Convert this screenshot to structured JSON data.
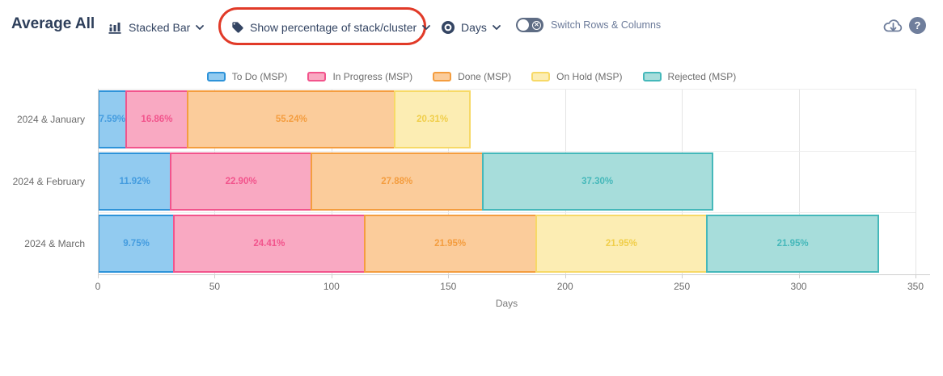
{
  "header": {
    "title": "Average All",
    "chart_type_dropdown": {
      "label": "Stacked Bar",
      "icon": "bar-chart-icon"
    },
    "percentage_dropdown": {
      "label": "Show percentage of stack/cluster",
      "icon": "tag-icon",
      "highlighted": true
    },
    "unit_dropdown": {
      "label": "Days",
      "icon": "eye-icon"
    },
    "switch_toggle": {
      "label": "Switch Rows & Columns",
      "state": "off"
    },
    "download_tooltip": "cloud-download-icon",
    "help_tooltip": "help-icon"
  },
  "annotation": {
    "color": "#e13a28",
    "shape": "rounded-rect"
  },
  "chart_data": {
    "type": "bar",
    "orientation": "horizontal",
    "stacked": true,
    "value_mode": "percentage of stack shown as labels, x axis in days",
    "xlabel": "Days",
    "xlim": [
      0,
      350
    ],
    "xticks": [
      0,
      50,
      100,
      150,
      200,
      250,
      300,
      350
    ],
    "grid": true,
    "legend_position": "top",
    "categories": [
      "2024 & January",
      "2024 & February",
      "2024 & March"
    ],
    "totals_days": [
      161.6,
      265.5,
      337.2
    ],
    "series": [
      {
        "name": "To Do (MSP)",
        "fill": "#92cbf0",
        "border": "#2e93d9",
        "label_color": "#449cdf",
        "values_days": [
          12.3,
          31.6,
          32.9
        ],
        "labels": [
          "7.59%",
          "11.92%",
          "9.75%"
        ]
      },
      {
        "name": "In Progress (MSP)",
        "fill": "#f9a9c2",
        "border": "#f2548c",
        "label_color": "#f2548c",
        "values_days": [
          27.3,
          60.8,
          82.3
        ],
        "labels": [
          "16.86%",
          "22.90%",
          "24.41%"
        ]
      },
      {
        "name": "Done (MSP)",
        "fill": "#fbcc9b",
        "border": "#f49d3f",
        "label_color": "#f49d3f",
        "values_days": [
          89.3,
          74.0,
          74.0
        ],
        "labels": [
          "55.24%",
          "27.88%",
          "21.95%"
        ]
      },
      {
        "name": "On Hold (MSP)",
        "fill": "#fcedb3",
        "border": "#f7d967",
        "label_color": "#f0ce4a",
        "values_days": [
          32.8,
          0,
          74.0
        ],
        "labels": [
          "20.31%",
          "",
          "21.95%"
        ]
      },
      {
        "name": "Rejected (MSP)",
        "fill": "#a7dddb",
        "border": "#45b8ba",
        "label_color": "#45b8ba",
        "values_days": [
          0,
          99.0,
          74.0
        ],
        "labels": [
          "",
          "37.30%",
          "21.95%"
        ]
      }
    ]
  }
}
